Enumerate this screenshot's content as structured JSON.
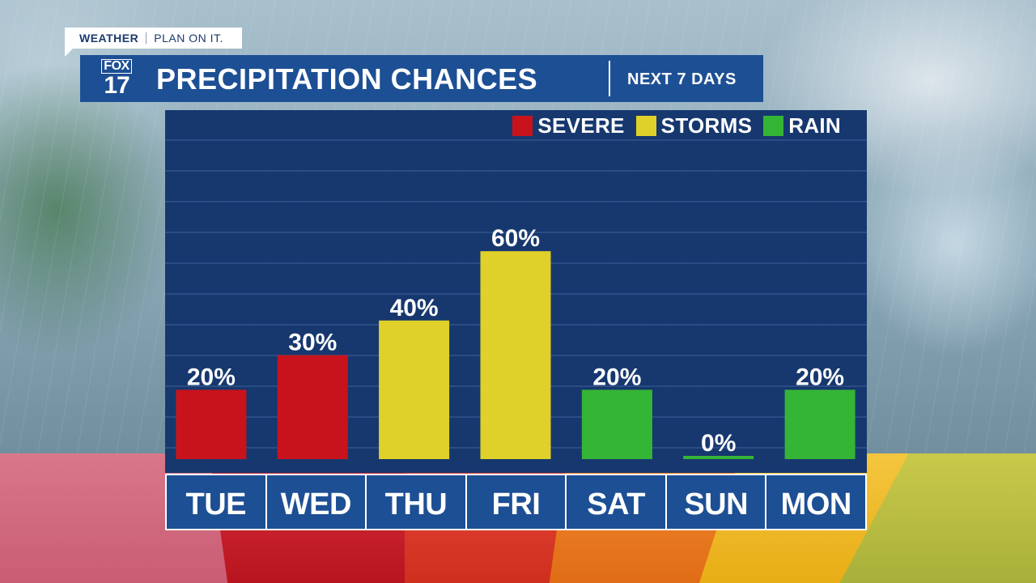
{
  "branding": {
    "tag_left": "WEATHER",
    "tag_right": "PLAN ON IT.",
    "logo_top": "FOX",
    "logo_bottom": "17"
  },
  "header": {
    "title": "PRECIPITATION CHANCES",
    "subtitle": "NEXT 7 DAYS"
  },
  "legend": [
    {
      "label": "SEVERE",
      "color": "#c8131c"
    },
    {
      "label": "STORMS",
      "color": "#dfd02a"
    },
    {
      "label": "RAIN",
      "color": "#35b535"
    }
  ],
  "chart_data": {
    "type": "bar",
    "title": "PRECIPITATION CHANCES",
    "subtitle": "NEXT 7 DAYS",
    "categories": [
      "TUE",
      "WED",
      "THU",
      "FRI",
      "SAT",
      "SUN",
      "MON"
    ],
    "values": [
      20,
      30,
      40,
      60,
      20,
      0,
      20
    ],
    "value_labels": [
      "20%",
      "30%",
      "40%",
      "60%",
      "20%",
      "0%",
      "20%"
    ],
    "bar_types": [
      "SEVERE",
      "SEVERE",
      "STORMS",
      "STORMS",
      "RAIN",
      "RAIN",
      "RAIN"
    ],
    "bar_colors": [
      "#c8131c",
      "#c8131c",
      "#dfd02a",
      "#dfd02a",
      "#35b535",
      "#35b535",
      "#35b535"
    ],
    "ylim": [
      0,
      100
    ],
    "unit": "%",
    "legend_position": "top-right",
    "grid": true
  }
}
